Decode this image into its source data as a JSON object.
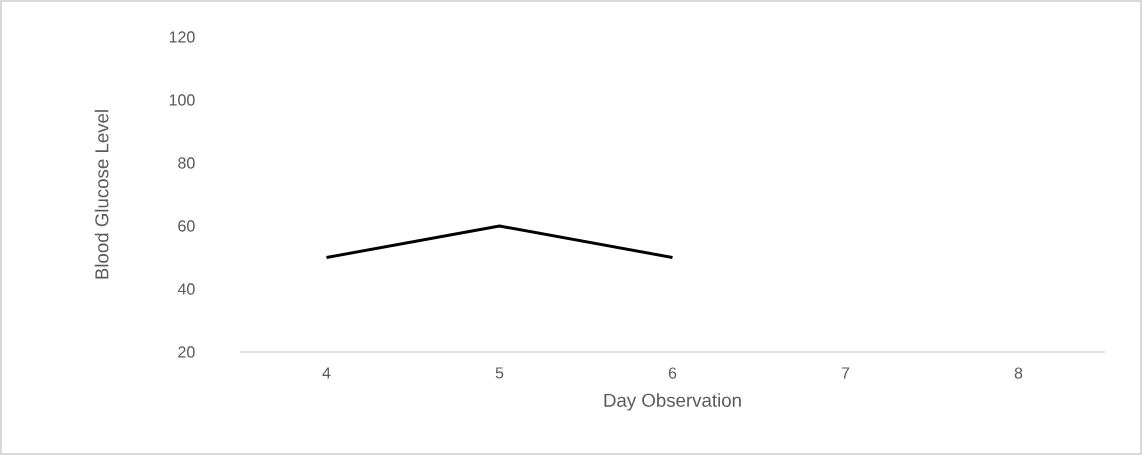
{
  "chart_data": {
    "type": "line",
    "xlabel": "Day Observation",
    "ylabel": "Blood Glucose Level",
    "categories": [
      "4",
      "5",
      "6",
      "7",
      "8"
    ],
    "values": [
      50,
      60,
      50,
      null,
      null
    ],
    "color": "#000000",
    "line_style": "solid",
    "ylim": [
      20,
      120
    ],
    "yticks": [
      20,
      40,
      60,
      80,
      100,
      120
    ]
  }
}
